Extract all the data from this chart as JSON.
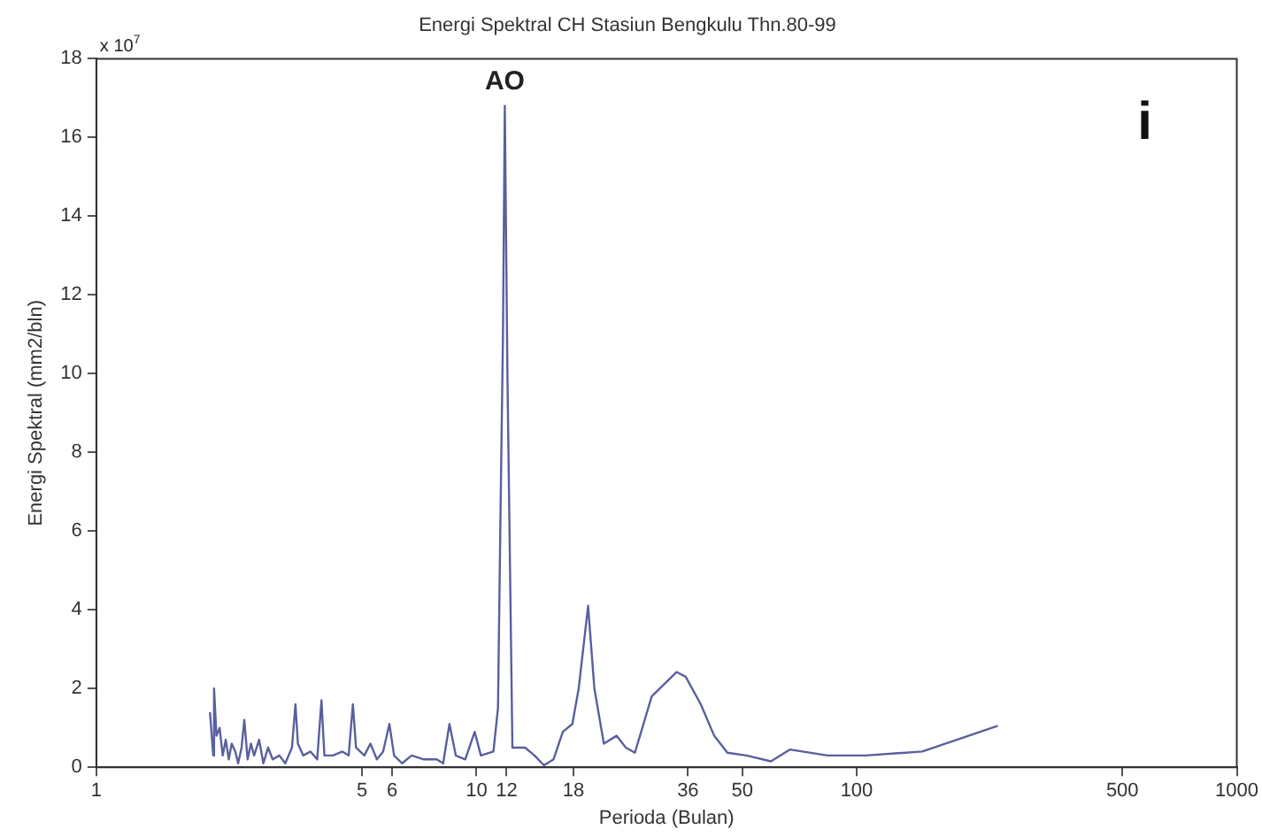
{
  "chart_data": {
    "type": "line",
    "title": "Energi Spektral CH Stasiun Bengkulu Thn.80-99",
    "xlabel": "Perioda (Bulan)",
    "ylabel": "Energi Spektral (mm2/bln)",
    "log": "x",
    "grid": false,
    "legend": false,
    "marker": "none",
    "line_style": "solid",
    "xlim": [
      1,
      1000
    ],
    "xticks": [
      1,
      5,
      6,
      10,
      12,
      18,
      36,
      50,
      100,
      500,
      1000
    ],
    "ylim": [
      0,
      18
    ],
    "yticks": [
      0,
      2,
      4,
      6,
      8,
      10,
      12,
      14,
      16,
      18
    ],
    "annotations": [
      "x 10$^{7}$",
      "i",
      {
        "text": "AO",
        "x": 11.87,
        "y": 16.8
      }
    ],
    "series": [
      {
        "color": "#5a5f9e",
        "x": [
          1.99,
          2.03,
          2.04,
          2.07,
          2.11,
          2.15,
          2.19,
          2.23,
          2.27,
          2.32,
          2.36,
          2.41,
          2.45,
          2.5,
          2.55,
          2.6,
          2.68,
          2.75,
          2.83,
          2.91,
          3.03,
          3.14,
          3.27,
          3.34,
          3.39,
          3.5,
          3.66,
          3.81,
          3.91,
          3.98,
          4.19,
          4.44,
          4.61,
          4.73,
          4.82,
          5.07,
          5.26,
          5.47,
          5.68,
          5.9,
          6.07,
          6.37,
          6.75,
          7.28,
          7.86,
          8.17,
          8.49,
          8.82,
          9.34,
          9.89,
          10.27,
          11.08,
          11.39,
          11.56,
          11.74,
          11.87,
          12.06,
          12.43,
          13.42,
          14.21,
          15.05,
          15.94,
          16.87,
          17.87,
          18.57,
          19.66,
          20.42,
          21.63,
          23.35,
          24.72,
          26.1,
          28.9,
          33.6,
          35.5,
          38.9,
          42.2,
          45.7,
          51.3,
          59.5,
          66.7,
          83.9,
          105.5,
          148.8,
          235
        ],
        "values": [
          1.4,
          0.3,
          2.0,
          0.8,
          1.0,
          0.3,
          0.7,
          0.2,
          0.6,
          0.4,
          0.1,
          0.5,
          1.2,
          0.2,
          0.6,
          0.3,
          0.7,
          0.1,
          0.5,
          0.2,
          0.3,
          0.1,
          0.5,
          1.6,
          0.6,
          0.3,
          0.4,
          0.2,
          1.7,
          0.3,
          0.3,
          0.4,
          0.3,
          1.6,
          0.5,
          0.3,
          0.6,
          0.2,
          0.4,
          1.1,
          0.3,
          0.1,
          0.3,
          0.2,
          0.2,
          0.1,
          1.1,
          0.3,
          0.2,
          0.9,
          0.3,
          0.4,
          1.5,
          6.3,
          11,
          16.8,
          10,
          0.5,
          0.5,
          0.3,
          0.05,
          0.2,
          0.9,
          1.1,
          2.0,
          4.1,
          2.0,
          0.6,
          0.8,
          0.5,
          0.37,
          1.8,
          2.42,
          2.3,
          1.6,
          0.8,
          0.37,
          0.3,
          0.15,
          0.45,
          0.3,
          0.3,
          0.4,
          1.05
        ]
      }
    ]
  }
}
